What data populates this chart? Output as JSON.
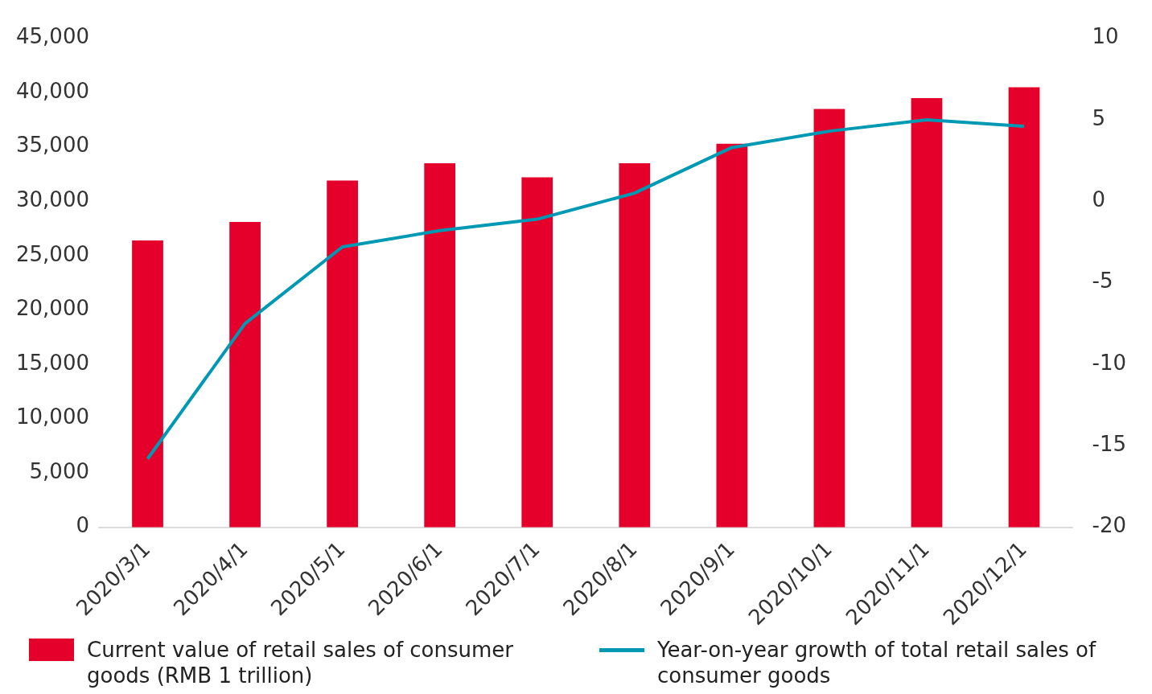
{
  "chart_data": {
    "type": "bar",
    "categories": [
      "2020/3/1",
      "2020/4/1",
      "2020/5/1",
      "2020/6/1",
      "2020/7/1",
      "2020/8/1",
      "2020/9/1",
      "2020/10/1",
      "2020/11/1",
      "2020/12/1"
    ],
    "series": [
      {
        "name": "Current value of retail sales of consumer goods (RMB 1 trillion)",
        "color": "#e4002b",
        "values": [
          26400,
          28100,
          31900,
          33500,
          32200,
          33500,
          35300,
          38500,
          39500,
          40500
        ]
      },
      {
        "name": "Year-on-year growth of total retail sales of consumer goods",
        "type": "line",
        "axis": "y2",
        "color": "#0099b4",
        "values": [
          -15.8,
          -7.5,
          -2.8,
          -1.8,
          -1.1,
          0.5,
          3.3,
          4.3,
          5.0,
          4.6
        ]
      }
    ],
    "ylim": [
      0,
      45000
    ],
    "yticks": [
      {
        "value": 0,
        "label": "0"
      },
      {
        "value": 5000,
        "label": "5,000"
      },
      {
        "value": 10000,
        "label": "10,000"
      },
      {
        "value": 15000,
        "label": "15,000"
      },
      {
        "value": 20000,
        "label": "20,000"
      },
      {
        "value": 25000,
        "label": "25,000"
      },
      {
        "value": 30000,
        "label": "30,000"
      },
      {
        "value": 35000,
        "label": "35,000"
      },
      {
        "value": 40000,
        "label": "40,000"
      },
      {
        "value": 45000,
        "label": "45,000"
      }
    ],
    "y2lim": [
      -20,
      10
    ],
    "y2ticks": [
      -20,
      -15,
      -10,
      -5,
      0,
      5,
      10
    ],
    "legend": "bottom",
    "marker": "none"
  }
}
